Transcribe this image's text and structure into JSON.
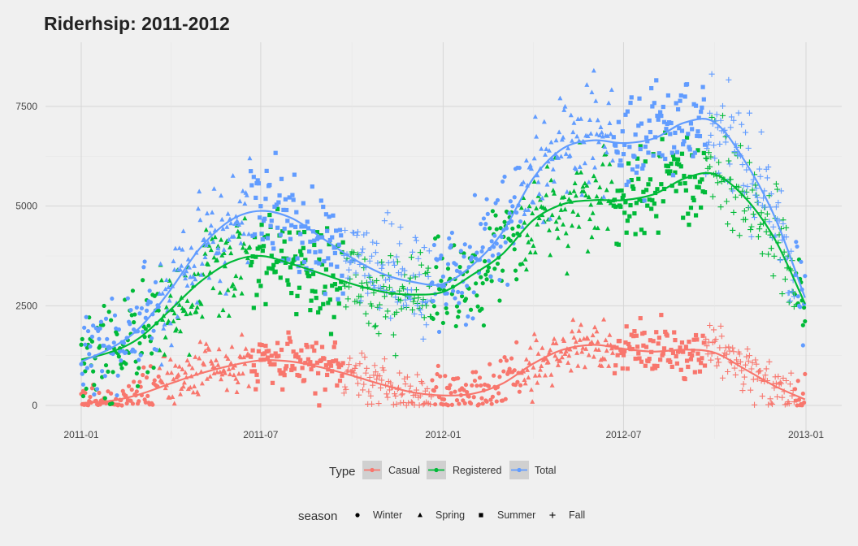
{
  "chart_data": {
    "type": "scatter",
    "title": "Riderhsip: 2011-2012",
    "xlabel": "",
    "ylabel": "",
    "x_range": [
      "2011-01-01",
      "2012-12-31"
    ],
    "x_ticks": [
      "2011-01",
      "2011-07",
      "2012-01",
      "2012-07",
      "2013-01"
    ],
    "y_ticks": [
      0,
      2500,
      5000,
      7500
    ],
    "ylim": [
      -300,
      8850
    ],
    "grid": true,
    "legend_position": "bottom",
    "type_legend": {
      "title": "Type",
      "entries": [
        {
          "name": "Casual",
          "color": "#f8766d"
        },
        {
          "name": "Registered",
          "color": "#00ba38"
        },
        {
          "name": "Total",
          "color": "#619cff"
        }
      ]
    },
    "season_legend": {
      "title": "season",
      "entries": [
        {
          "name": "Winter",
          "shape": "circle"
        },
        {
          "name": "Spring",
          "shape": "triangle"
        },
        {
          "name": "Summer",
          "shape": "square"
        },
        {
          "name": "Fall",
          "shape": "plus"
        }
      ]
    },
    "season_spans": [
      {
        "shape": "circle",
        "from": "2011-01-01",
        "to": "2011-03-20"
      },
      {
        "shape": "triangle",
        "from": "2011-03-21",
        "to": "2011-06-20"
      },
      {
        "shape": "square",
        "from": "2011-06-21",
        "to": "2011-09-22"
      },
      {
        "shape": "plus",
        "from": "2011-09-23",
        "to": "2011-12-20"
      },
      {
        "shape": "circle",
        "from": "2011-12-21",
        "to": "2012-03-19"
      },
      {
        "shape": "triangle",
        "from": "2012-03-20",
        "to": "2012-06-20"
      },
      {
        "shape": "square",
        "from": "2012-06-21",
        "to": "2012-09-21"
      },
      {
        "shape": "plus",
        "from": "2012-09-22",
        "to": "2012-12-20"
      },
      {
        "shape": "circle",
        "from": "2012-12-21",
        "to": "2012-12-31"
      }
    ],
    "series": [
      {
        "name": "Casual",
        "color": "#f8766d",
        "point_spread": 330,
        "trend": [
          {
            "x": "2011-01-01",
            "y": 60
          },
          {
            "x": "2011-02-01",
            "y": 120
          },
          {
            "x": "2011-03-01",
            "y": 280
          },
          {
            "x": "2011-04-01",
            "y": 550
          },
          {
            "x": "2011-05-01",
            "y": 800
          },
          {
            "x": "2011-06-01",
            "y": 1000
          },
          {
            "x": "2011-07-01",
            "y": 1130
          },
          {
            "x": "2011-08-01",
            "y": 1100
          },
          {
            "x": "2011-09-01",
            "y": 950
          },
          {
            "x": "2011-10-01",
            "y": 750
          },
          {
            "x": "2011-11-01",
            "y": 520
          },
          {
            "x": "2011-12-01",
            "y": 330
          },
          {
            "x": "2012-01-01",
            "y": 250
          },
          {
            "x": "2012-02-01",
            "y": 300
          },
          {
            "x": "2012-03-01",
            "y": 550
          },
          {
            "x": "2012-04-01",
            "y": 1050
          },
          {
            "x": "2012-05-01",
            "y": 1400
          },
          {
            "x": "2012-06-01",
            "y": 1520
          },
          {
            "x": "2012-07-01",
            "y": 1420
          },
          {
            "x": "2012-08-01",
            "y": 1350
          },
          {
            "x": "2012-09-01",
            "y": 1400
          },
          {
            "x": "2012-10-01",
            "y": 1320
          },
          {
            "x": "2012-11-01",
            "y": 900
          },
          {
            "x": "2012-12-01",
            "y": 480
          },
          {
            "x": "2012-12-31",
            "y": 150
          }
        ]
      },
      {
        "name": "Registered",
        "color": "#00ba38",
        "point_spread": 620,
        "trend": [
          {
            "x": "2011-01-01",
            "y": 1150
          },
          {
            "x": "2011-02-01",
            "y": 1350
          },
          {
            "x": "2011-03-01",
            "y": 1700
          },
          {
            "x": "2011-04-01",
            "y": 2400
          },
          {
            "x": "2011-05-01",
            "y": 3100
          },
          {
            "x": "2011-06-01",
            "y": 3600
          },
          {
            "x": "2011-07-01",
            "y": 3750
          },
          {
            "x": "2011-08-01",
            "y": 3550
          },
          {
            "x": "2011-09-01",
            "y": 3300
          },
          {
            "x": "2011-10-01",
            "y": 3050
          },
          {
            "x": "2011-11-01",
            "y": 2850
          },
          {
            "x": "2011-12-01",
            "y": 2780
          },
          {
            "x": "2012-01-01",
            "y": 2850
          },
          {
            "x": "2012-02-01",
            "y": 3300
          },
          {
            "x": "2012-03-01",
            "y": 3800
          },
          {
            "x": "2012-04-01",
            "y": 4650
          },
          {
            "x": "2012-05-01",
            "y": 5050
          },
          {
            "x": "2012-06-01",
            "y": 5150
          },
          {
            "x": "2012-07-01",
            "y": 5150
          },
          {
            "x": "2012-08-01",
            "y": 5300
          },
          {
            "x": "2012-09-01",
            "y": 5700
          },
          {
            "x": "2012-10-01",
            "y": 5800
          },
          {
            "x": "2012-11-01",
            "y": 5200
          },
          {
            "x": "2012-12-01",
            "y": 4150
          },
          {
            "x": "2012-12-31",
            "y": 2550
          }
        ]
      },
      {
        "name": "Total",
        "color": "#619cff",
        "point_spread": 650,
        "trend": [
          {
            "x": "2011-01-01",
            "y": 1100
          },
          {
            "x": "2011-02-01",
            "y": 1450
          },
          {
            "x": "2011-03-01",
            "y": 1950
          },
          {
            "x": "2011-04-01",
            "y": 2900
          },
          {
            "x": "2011-05-01",
            "y": 3950
          },
          {
            "x": "2011-06-01",
            "y": 4650
          },
          {
            "x": "2011-07-01",
            "y": 4880
          },
          {
            "x": "2011-08-01",
            "y": 4700
          },
          {
            "x": "2011-09-01",
            "y": 4200
          },
          {
            "x": "2011-10-01",
            "y": 3700
          },
          {
            "x": "2011-11-01",
            "y": 3300
          },
          {
            "x": "2011-12-01",
            "y": 3100
          },
          {
            "x": "2012-01-01",
            "y": 3050
          },
          {
            "x": "2012-02-01",
            "y": 3550
          },
          {
            "x": "2012-03-01",
            "y": 4350
          },
          {
            "x": "2012-04-01",
            "y": 5700
          },
          {
            "x": "2012-05-01",
            "y": 6450
          },
          {
            "x": "2012-06-01",
            "y": 6650
          },
          {
            "x": "2012-07-01",
            "y": 6580
          },
          {
            "x": "2012-08-01",
            "y": 6700
          },
          {
            "x": "2012-09-01",
            "y": 7100
          },
          {
            "x": "2012-10-01",
            "y": 7100
          },
          {
            "x": "2012-11-01",
            "y": 6100
          },
          {
            "x": "2012-12-01",
            "y": 4700
          },
          {
            "x": "2012-12-31",
            "y": 2700
          }
        ]
      }
    ]
  }
}
